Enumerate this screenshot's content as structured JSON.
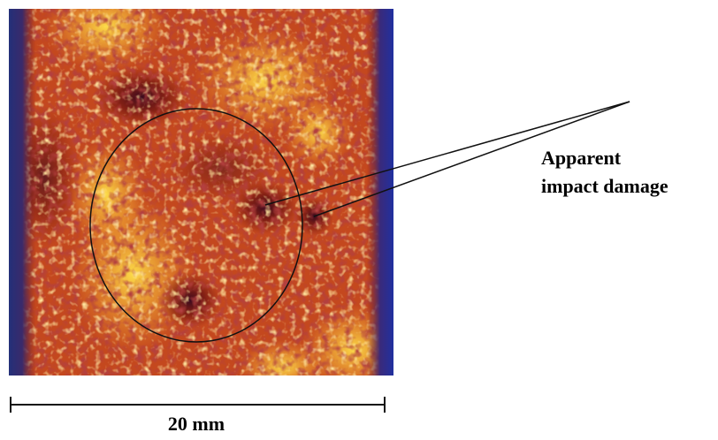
{
  "annotation": {
    "lines": [
      "Apparent",
      "impact damage"
    ]
  },
  "scale_bar": {
    "label": "20 mm"
  }
}
